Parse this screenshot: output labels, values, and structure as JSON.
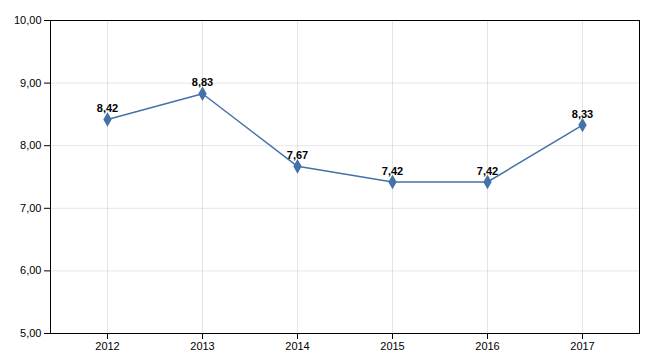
{
  "chart_data": {
    "type": "line",
    "x": [
      2012,
      2013,
      2014,
      2015,
      2016,
      2017
    ],
    "values": [
      8.42,
      8.83,
      7.67,
      7.42,
      7.42,
      8.33
    ],
    "value_labels": [
      "8,42",
      "8,83",
      "7,67",
      "7,42",
      "7,42",
      "8,33"
    ],
    "data_labels": true,
    "color": "#4472a8",
    "marker": "diamond",
    "xlim": [
      2011.4,
      2017.6
    ],
    "xticks": [
      2012,
      2013,
      2014,
      2015,
      2016,
      2017
    ],
    "ylim": [
      5.0,
      10.0
    ],
    "yticks": [
      {
        "value": 5.0,
        "label": "5,00"
      },
      {
        "value": 6.0,
        "label": "6,00"
      },
      {
        "value": 7.0,
        "label": "7,00"
      },
      {
        "value": 8.0,
        "label": "8,00"
      },
      {
        "value": 9.0,
        "label": "9,00"
      },
      {
        "value": 10.0,
        "label": "10,00"
      }
    ],
    "grid": true
  }
}
